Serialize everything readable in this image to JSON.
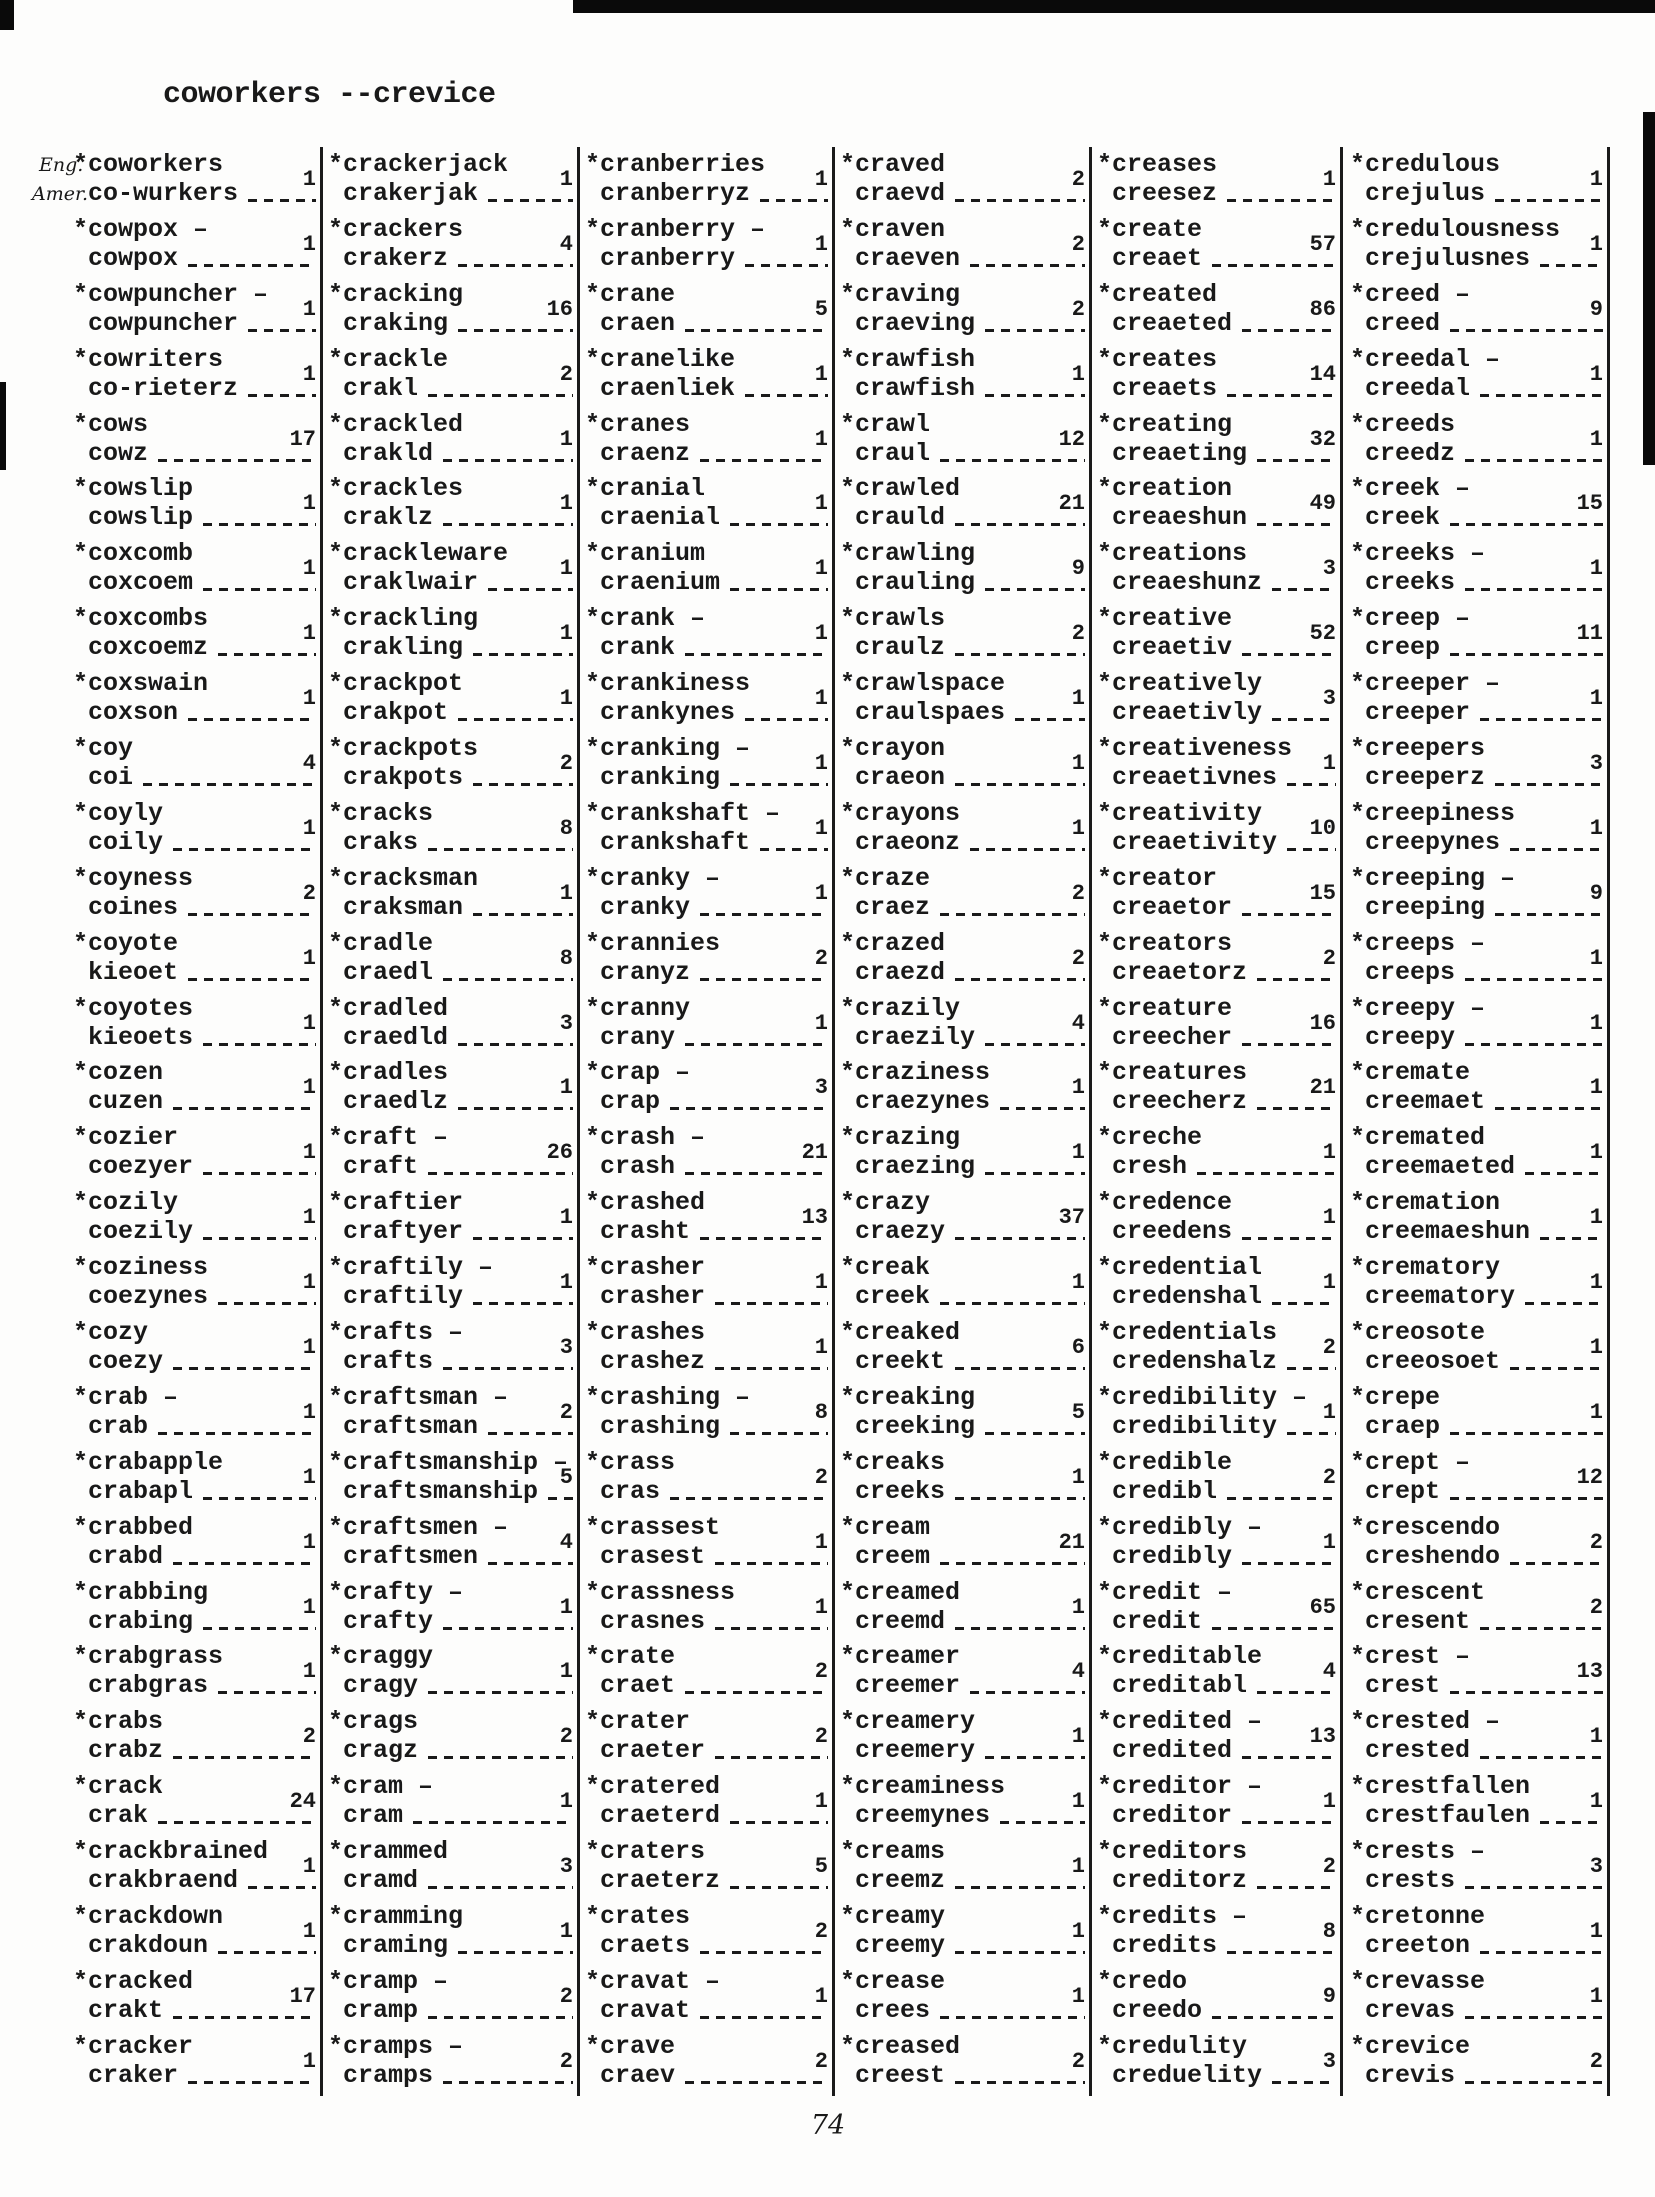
{
  "header": {
    "title": "coworkers --crevice"
  },
  "first_entry_labels": {
    "eng": "Eng.",
    "amer": "Amer."
  },
  "page_number": "74",
  "columns": [
    [
      {
        "eng": "*coworkers",
        "amer": "co-wurkers",
        "count": "1"
      },
      {
        "eng": "*cowpox –",
        "amer": "cowpox",
        "count": "1"
      },
      {
        "eng": "*cowpuncher –",
        "amer": "cowpuncher",
        "count": "1"
      },
      {
        "eng": "*cowriters",
        "amer": "co-rieterz",
        "count": "1"
      },
      {
        "eng": "*cows",
        "amer": "cowz",
        "count": "17"
      },
      {
        "eng": "*cowslip",
        "amer": "cowslip",
        "count": "1"
      },
      {
        "eng": "*coxcomb",
        "amer": "coxcoem",
        "count": "1"
      },
      {
        "eng": "*coxcombs",
        "amer": "coxcoemz",
        "count": "1"
      },
      {
        "eng": "*coxswain",
        "amer": "coxson",
        "count": "1"
      },
      {
        "eng": "*coy",
        "amer": "coi",
        "count": "4"
      },
      {
        "eng": "*coyly",
        "amer": "coily",
        "count": "1"
      },
      {
        "eng": "*coyness",
        "amer": "coines",
        "count": "2"
      },
      {
        "eng": "*coyote",
        "amer": "kieoet",
        "count": "1"
      },
      {
        "eng": "*coyotes",
        "amer": "kieoets",
        "count": "1"
      },
      {
        "eng": "*cozen",
        "amer": "cuzen",
        "count": "1"
      },
      {
        "eng": "*cozier",
        "amer": "coezyer",
        "count": "1"
      },
      {
        "eng": "*cozily",
        "amer": "coezily",
        "count": "1"
      },
      {
        "eng": "*coziness",
        "amer": "coezynes",
        "count": "1"
      },
      {
        "eng": "*cozy",
        "amer": "coezy",
        "count": "1"
      },
      {
        "eng": "*crab –",
        "amer": "crab",
        "count": "1"
      },
      {
        "eng": "*crabapple",
        "amer": "crabapl",
        "count": "1"
      },
      {
        "eng": "*crabbed",
        "amer": "crabd",
        "count": "1"
      },
      {
        "eng": "*crabbing",
        "amer": "crabing",
        "count": "1"
      },
      {
        "eng": "*crabgrass",
        "amer": "crabgras",
        "count": "1"
      },
      {
        "eng": "*crabs",
        "amer": "crabz",
        "count": "2"
      },
      {
        "eng": "*crack",
        "amer": "crak",
        "count": "24"
      },
      {
        "eng": "*crackbrained",
        "amer": "crakbraend",
        "count": "1"
      },
      {
        "eng": "*crackdown",
        "amer": "crakdoun",
        "count": "1"
      },
      {
        "eng": "*cracked",
        "amer": "crakt",
        "count": "17"
      },
      {
        "eng": "*cracker",
        "amer": "craker",
        "count": "1"
      }
    ],
    [
      {
        "eng": "*crackerjack",
        "amer": "crakerjak",
        "count": "1"
      },
      {
        "eng": "*crackers",
        "amer": "crakerz",
        "count": "4"
      },
      {
        "eng": "*cracking",
        "amer": "craking",
        "count": "16"
      },
      {
        "eng": "*crackle",
        "amer": "crakl",
        "count": "2"
      },
      {
        "eng": "*crackled",
        "amer": "crakld",
        "count": "1"
      },
      {
        "eng": "*crackles",
        "amer": "craklz",
        "count": "1"
      },
      {
        "eng": "*crackleware",
        "amer": "craklwair",
        "count": "1"
      },
      {
        "eng": "*crackling",
        "amer": "crakling",
        "count": "1"
      },
      {
        "eng": "*crackpot",
        "amer": "crakpot",
        "count": "1"
      },
      {
        "eng": "*crackpots",
        "amer": "crakpots",
        "count": "2"
      },
      {
        "eng": "*cracks",
        "amer": "craks",
        "count": "8"
      },
      {
        "eng": "*cracksman",
        "amer": "craksman",
        "count": "1"
      },
      {
        "eng": "*cradle",
        "amer": "craedl",
        "count": "8"
      },
      {
        "eng": "*cradled",
        "amer": "craedld",
        "count": "3"
      },
      {
        "eng": "*cradles",
        "amer": "craedlz",
        "count": "1"
      },
      {
        "eng": "*craft –",
        "amer": "craft",
        "count": "26"
      },
      {
        "eng": "*craftier",
        "amer": "craftyer",
        "count": "1"
      },
      {
        "eng": "*craftily –",
        "amer": "craftily",
        "count": "1"
      },
      {
        "eng": "*crafts –",
        "amer": "crafts",
        "count": "3"
      },
      {
        "eng": "*craftsman –",
        "amer": "craftsman",
        "count": "2"
      },
      {
        "eng": "*craftsmanship –",
        "amer": "craftsmanship",
        "count": "5"
      },
      {
        "eng": "*craftsmen –",
        "amer": "craftsmen",
        "count": "4"
      },
      {
        "eng": "*crafty –",
        "amer": "crafty",
        "count": "1"
      },
      {
        "eng": "*craggy",
        "amer": "cragy",
        "count": "1"
      },
      {
        "eng": "*crags",
        "amer": "cragz",
        "count": "2"
      },
      {
        "eng": "*cram –",
        "amer": "cram",
        "count": "1"
      },
      {
        "eng": "*crammed",
        "amer": "cramd",
        "count": "3"
      },
      {
        "eng": "*cramming",
        "amer": "craming",
        "count": "1"
      },
      {
        "eng": "*cramp –",
        "amer": "cramp",
        "count": "2"
      },
      {
        "eng": "*cramps –",
        "amer": "cramps",
        "count": "2"
      }
    ],
    [
      {
        "eng": "*cranberries",
        "amer": "cranberryz",
        "count": "1"
      },
      {
        "eng": "*cranberry –",
        "amer": "cranberry",
        "count": "1"
      },
      {
        "eng": "*crane",
        "amer": "craen",
        "count": "5"
      },
      {
        "eng": "*cranelike",
        "amer": "craenliek",
        "count": "1"
      },
      {
        "eng": "*cranes",
        "amer": "craenz",
        "count": "1"
      },
      {
        "eng": "*cranial",
        "amer": "craenial",
        "count": "1"
      },
      {
        "eng": "*cranium",
        "amer": "craenium",
        "count": "1"
      },
      {
        "eng": "*crank –",
        "amer": "crank",
        "count": "1"
      },
      {
        "eng": "*crankiness",
        "amer": "crankynes",
        "count": "1"
      },
      {
        "eng": "*cranking –",
        "amer": "cranking",
        "count": "1"
      },
      {
        "eng": "*crankshaft –",
        "amer": "crankshaft",
        "count": "1"
      },
      {
        "eng": "*cranky –",
        "amer": "cranky",
        "count": "1"
      },
      {
        "eng": "*crannies",
        "amer": "cranyz",
        "count": "2"
      },
      {
        "eng": "*cranny",
        "amer": "crany",
        "count": "1"
      },
      {
        "eng": "*crap –",
        "amer": "crap",
        "count": "3"
      },
      {
        "eng": "*crash –",
        "amer": "crash",
        "count": "21"
      },
      {
        "eng": "*crashed",
        "amer": "crasht",
        "count": "13"
      },
      {
        "eng": "*crasher",
        "amer": "crasher",
        "count": "1"
      },
      {
        "eng": "*crashes",
        "amer": "crashez",
        "count": "1"
      },
      {
        "eng": "*crashing –",
        "amer": "crashing",
        "count": "8"
      },
      {
        "eng": "*crass",
        "amer": "cras",
        "count": "2"
      },
      {
        "eng": "*crassest",
        "amer": "crasest",
        "count": "1"
      },
      {
        "eng": "*crassness",
        "amer": "crasnes",
        "count": "1"
      },
      {
        "eng": "*crate",
        "amer": "craet",
        "count": "2"
      },
      {
        "eng": "*crater",
        "amer": "craeter",
        "count": "2"
      },
      {
        "eng": "*cratered",
        "amer": "craeterd",
        "count": "1"
      },
      {
        "eng": "*craters",
        "amer": "craeterz",
        "count": "5"
      },
      {
        "eng": "*crates",
        "amer": "craets",
        "count": "2"
      },
      {
        "eng": "*cravat –",
        "amer": "cravat",
        "count": "1"
      },
      {
        "eng": "*crave",
        "amer": "craev",
        "count": "2"
      }
    ],
    [
      {
        "eng": "*craved",
        "amer": "craevd",
        "count": "2"
      },
      {
        "eng": "*craven",
        "amer": "craeven",
        "count": "2"
      },
      {
        "eng": "*craving",
        "amer": "craeving",
        "count": "2"
      },
      {
        "eng": "*crawfish",
        "amer": "crawfish",
        "count": "1"
      },
      {
        "eng": "*crawl",
        "amer": "craul",
        "count": "12"
      },
      {
        "eng": "*crawled",
        "amer": "crauld",
        "count": "21"
      },
      {
        "eng": "*crawling",
        "amer": "crauling",
        "count": "9"
      },
      {
        "eng": "*crawls",
        "amer": "craulz",
        "count": "2"
      },
      {
        "eng": "*crawlspace",
        "amer": "craulspaes",
        "count": "1"
      },
      {
        "eng": "*crayon",
        "amer": "craeon",
        "count": "1"
      },
      {
        "eng": "*crayons",
        "amer": "craeonz",
        "count": "1"
      },
      {
        "eng": "*craze",
        "amer": "craez",
        "count": "2"
      },
      {
        "eng": "*crazed",
        "amer": "craezd",
        "count": "2"
      },
      {
        "eng": "*crazily",
        "amer": "craezily",
        "count": "4"
      },
      {
        "eng": "*craziness",
        "amer": "craezynes",
        "count": "1"
      },
      {
        "eng": "*crazing",
        "amer": "craezing",
        "count": "1"
      },
      {
        "eng": "*crazy",
        "amer": "craezy",
        "count": "37"
      },
      {
        "eng": "*creak",
        "amer": "creek",
        "count": "1"
      },
      {
        "eng": "*creaked",
        "amer": "creekt",
        "count": "6"
      },
      {
        "eng": "*creaking",
        "amer": "creeking",
        "count": "5"
      },
      {
        "eng": "*creaks",
        "amer": "creeks",
        "count": "1"
      },
      {
        "eng": "*cream",
        "amer": "creem",
        "count": "21"
      },
      {
        "eng": "*creamed",
        "amer": "creemd",
        "count": "1"
      },
      {
        "eng": "*creamer",
        "amer": "creemer",
        "count": "4"
      },
      {
        "eng": "*creamery",
        "amer": "creemery",
        "count": "1"
      },
      {
        "eng": "*creaminess",
        "amer": "creemynes",
        "count": "1"
      },
      {
        "eng": "*creams",
        "amer": "creemz",
        "count": "1"
      },
      {
        "eng": "*creamy",
        "amer": "creemy",
        "count": "1"
      },
      {
        "eng": "*crease",
        "amer": "crees",
        "count": "1"
      },
      {
        "eng": "*creased",
        "amer": "creest",
        "count": "2"
      }
    ],
    [
      {
        "eng": "*creases",
        "amer": "creesez",
        "count": "1"
      },
      {
        "eng": "*create",
        "amer": "creaet",
        "count": "57"
      },
      {
        "eng": "*created",
        "amer": "creaeted",
        "count": "86"
      },
      {
        "eng": "*creates",
        "amer": "creaets",
        "count": "14"
      },
      {
        "eng": "*creating",
        "amer": "creaeting",
        "count": "32"
      },
      {
        "eng": "*creation",
        "amer": "creaeshun",
        "count": "49"
      },
      {
        "eng": "*creations",
        "amer": "creaeshunz",
        "count": "3"
      },
      {
        "eng": "*creative",
        "amer": "creaetiv",
        "count": "52"
      },
      {
        "eng": "*creatively",
        "amer": "creaetivly",
        "count": "3"
      },
      {
        "eng": "*creativeness",
        "amer": "creaetivnes",
        "count": "1"
      },
      {
        "eng": "*creativity",
        "amer": "creaetivity",
        "count": "10"
      },
      {
        "eng": "*creator",
        "amer": "creaetor",
        "count": "15"
      },
      {
        "eng": "*creators",
        "amer": "creaetorz",
        "count": "2"
      },
      {
        "eng": "*creature",
        "amer": "creecher",
        "count": "16"
      },
      {
        "eng": "*creatures",
        "amer": "creecherz",
        "count": "21"
      },
      {
        "eng": "*creche",
        "amer": "cresh",
        "count": "1"
      },
      {
        "eng": "*credence",
        "amer": "creedens",
        "count": "1"
      },
      {
        "eng": "*credential",
        "amer": "credenshal",
        "count": "1"
      },
      {
        "eng": "*credentials",
        "amer": "credenshalz",
        "count": "2"
      },
      {
        "eng": "*credibility –",
        "amer": "credibility",
        "count": "1"
      },
      {
        "eng": "*credible",
        "amer": "credibl",
        "count": "2"
      },
      {
        "eng": "*credibly –",
        "amer": "credibly",
        "count": "1"
      },
      {
        "eng": "*credit –",
        "amer": "credit",
        "count": "65"
      },
      {
        "eng": "*creditable",
        "amer": "creditabl",
        "count": "4"
      },
      {
        "eng": "*credited –",
        "amer": "credited",
        "count": "13"
      },
      {
        "eng": "*creditor –",
        "amer": "creditor",
        "count": "1"
      },
      {
        "eng": "*creditors",
        "amer": "creditorz",
        "count": "2"
      },
      {
        "eng": "*credits –",
        "amer": "credits",
        "count": "8"
      },
      {
        "eng": "*credo",
        "amer": "creedo",
        "count": "9"
      },
      {
        "eng": "*credulity",
        "amer": "creduelity",
        "count": "3"
      }
    ],
    [
      {
        "eng": "*credulous",
        "amer": "crejulus",
        "count": "1"
      },
      {
        "eng": "*credulousness",
        "amer": "crejulusnes",
        "count": "1"
      },
      {
        "eng": "*creed –",
        "amer": "creed",
        "count": "9"
      },
      {
        "eng": "*creedal –",
        "amer": "creedal",
        "count": "1"
      },
      {
        "eng": "*creeds",
        "amer": "creedz",
        "count": "1"
      },
      {
        "eng": "*creek –",
        "amer": "creek",
        "count": "15"
      },
      {
        "eng": "*creeks –",
        "amer": "creeks",
        "count": "1"
      },
      {
        "eng": "*creep –",
        "amer": "creep",
        "count": "11"
      },
      {
        "eng": "*creeper –",
        "amer": "creeper",
        "count": "1"
      },
      {
        "eng": "*creepers",
        "amer": "creeperz",
        "count": "3"
      },
      {
        "eng": "*creepiness",
        "amer": "creepynes",
        "count": "1"
      },
      {
        "eng": "*creeping –",
        "amer": "creeping",
        "count": "9"
      },
      {
        "eng": "*creeps –",
        "amer": "creeps",
        "count": "1"
      },
      {
        "eng": "*creepy –",
        "amer": "creepy",
        "count": "1"
      },
      {
        "eng": "*cremate",
        "amer": "creemaet",
        "count": "1"
      },
      {
        "eng": "*cremated",
        "amer": "creemaeted",
        "count": "1"
      },
      {
        "eng": "*cremation",
        "amer": "creemaeshun",
        "count": "1"
      },
      {
        "eng": "*crematory",
        "amer": "creematory",
        "count": "1"
      },
      {
        "eng": "*creosote",
        "amer": "creeosoet",
        "count": "1"
      },
      {
        "eng": "*crepe",
        "amer": "craep",
        "count": "1"
      },
      {
        "eng": "*crept –",
        "amer": "crept",
        "count": "12"
      },
      {
        "eng": "*crescendo",
        "amer": "creshendo",
        "count": "2"
      },
      {
        "eng": "*crescent",
        "amer": "cresent",
        "count": "2"
      },
      {
        "eng": "*crest –",
        "amer": "crest",
        "count": "13"
      },
      {
        "eng": "*crested –",
        "amer": "crested",
        "count": "1"
      },
      {
        "eng": "*crestfallen",
        "amer": "crestfaulen",
        "count": "1"
      },
      {
        "eng": "*crests –",
        "amer": "crests",
        "count": "3"
      },
      {
        "eng": "*cretonne",
        "amer": "creeton",
        "count": "1"
      },
      {
        "eng": "*crevasse",
        "amer": "crevas",
        "count": "1"
      },
      {
        "eng": "*crevice",
        "amer": "crevis",
        "count": "2"
      }
    ]
  ]
}
